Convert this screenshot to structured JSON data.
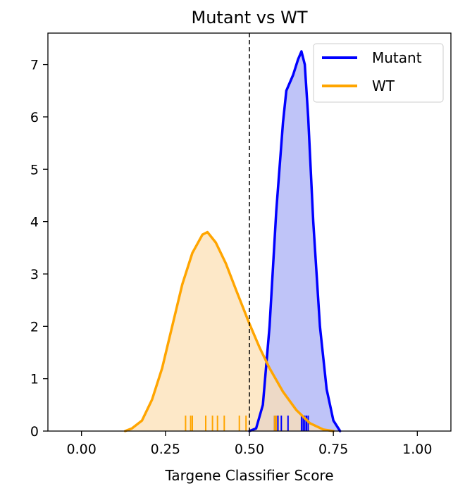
{
  "chart_data": {
    "type": "area",
    "title": "Mutant vs WT",
    "xlabel": "Targene Classifier Score",
    "ylabel": "",
    "xlim": [
      -0.1,
      1.1
    ],
    "ylim": [
      0,
      7.6
    ],
    "xticks": [
      0.0,
      0.25,
      0.5,
      0.75,
      1.0
    ],
    "xtick_labels": [
      "0.00",
      "0.25",
      "0.50",
      "0.75",
      "1.00"
    ],
    "yticks": [
      0,
      1,
      2,
      3,
      4,
      5,
      6,
      7
    ],
    "ytick_labels": [
      "0",
      "1",
      "2",
      "3",
      "4",
      "5",
      "6",
      "7"
    ],
    "grid": false,
    "legend_position": "upper right",
    "threshold": {
      "x": 0.5,
      "style": "dashed",
      "color": "#000000"
    },
    "series": [
      {
        "name": "Mutant",
        "color": "#0000ff",
        "fill": "#aab0f5",
        "density": [
          [
            0.5,
            0.0
          ],
          [
            0.52,
            0.05
          ],
          [
            0.54,
            0.5
          ],
          [
            0.56,
            2.0
          ],
          [
            0.58,
            4.2
          ],
          [
            0.6,
            5.9
          ],
          [
            0.61,
            6.5
          ],
          [
            0.63,
            6.8
          ],
          [
            0.645,
            7.1
          ],
          [
            0.655,
            7.25
          ],
          [
            0.665,
            7.0
          ],
          [
            0.675,
            6.0
          ],
          [
            0.69,
            4.0
          ],
          [
            0.71,
            2.0
          ],
          [
            0.73,
            0.8
          ],
          [
            0.75,
            0.2
          ],
          [
            0.77,
            0.0
          ]
        ],
        "rug": [
          0.575,
          0.58,
          0.585,
          0.595,
          0.615,
          0.655,
          0.66,
          0.665,
          0.67,
          0.675
        ]
      },
      {
        "name": "WT",
        "color": "#ffa500",
        "fill": "#fce0b5",
        "density": [
          [
            0.13,
            0.0
          ],
          [
            0.15,
            0.05
          ],
          [
            0.18,
            0.2
          ],
          [
            0.21,
            0.6
          ],
          [
            0.24,
            1.2
          ],
          [
            0.27,
            2.0
          ],
          [
            0.3,
            2.8
          ],
          [
            0.33,
            3.4
          ],
          [
            0.36,
            3.75
          ],
          [
            0.375,
            3.8
          ],
          [
            0.4,
            3.6
          ],
          [
            0.43,
            3.2
          ],
          [
            0.46,
            2.7
          ],
          [
            0.5,
            2.05
          ],
          [
            0.53,
            1.6
          ],
          [
            0.56,
            1.2
          ],
          [
            0.6,
            0.75
          ],
          [
            0.64,
            0.4
          ],
          [
            0.68,
            0.15
          ],
          [
            0.72,
            0.03
          ],
          [
            0.75,
            0.0
          ]
        ],
        "rug": [
          0.31,
          0.325,
          0.33,
          0.37,
          0.39,
          0.405,
          0.425,
          0.47,
          0.49,
          0.575,
          0.58
        ]
      }
    ]
  }
}
